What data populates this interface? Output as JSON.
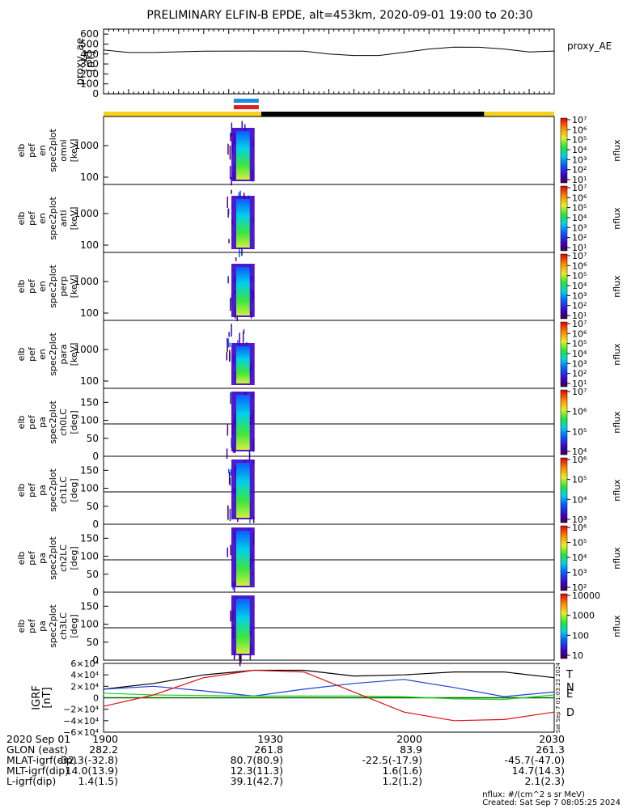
{
  "title": "PRELIMINARY ELFIN-B EPDE, alt=453km, 2020-09-01 19:00 to 20:30",
  "proxy_ae": {
    "ylabel": "proxy_ae\n[nT]",
    "legend": "proxy_AE",
    "yticks": [
      "600",
      "500",
      "400",
      "300",
      "200",
      "100",
      "0"
    ]
  },
  "spectrogram_panels": [
    {
      "label": "elb\npef\nen\nspec2plot\nomni\n[keV]",
      "yticks": [
        "1000",
        "100"
      ],
      "cb_ticks": [
        "10⁷",
        "10⁶",
        "10⁵",
        "10⁴",
        "10³",
        "10²",
        "10¹"
      ],
      "cb_label": "nflux"
    },
    {
      "label": "elb\npef\nen\nspec2plot\nanti\n[keV]",
      "yticks": [
        "1000",
        "100"
      ],
      "cb_ticks": [
        "10⁷",
        "10⁶",
        "10⁵",
        "10⁴",
        "10³",
        "10²",
        "10¹"
      ],
      "cb_label": "nflux"
    },
    {
      "label": "elb\npef\nen\nspec2plot\nperp\n[keV]",
      "yticks": [
        "1000",
        "100"
      ],
      "cb_ticks": [
        "10⁷",
        "10⁶",
        "10⁵",
        "10⁴",
        "10³",
        "10²",
        "10¹"
      ],
      "cb_label": "nflux"
    },
    {
      "label": "elb\npef\nen\nspec2plot\npara\n[keV]",
      "yticks": [
        "1000",
        "100"
      ],
      "cb_ticks": [
        "10⁷",
        "10⁶",
        "10⁵",
        "10⁴",
        "10³",
        "10²",
        "10¹"
      ],
      "cb_label": "nflux"
    },
    {
      "label": "elb\npef\npa\nspec2plot\nch0LC\n[deg]",
      "yticks": [
        "150",
        "100",
        "50",
        "0"
      ],
      "cb_ticks": [
        "10⁷",
        "10⁶",
        "10⁵",
        "10⁴"
      ],
      "cb_label": "nflux"
    },
    {
      "label": "elb\npef\npa\nspec2plot\nch1LC\n[deg]",
      "yticks": [
        "150",
        "100",
        "50",
        "0"
      ],
      "cb_ticks": [
        "10⁶",
        "10⁵",
        "10⁴",
        "10³"
      ],
      "cb_label": "nflux"
    },
    {
      "label": "elb\npef\npa\nspec2plot\nch2LC\n[deg]",
      "yticks": [
        "150",
        "100",
        "50",
        "0"
      ],
      "cb_ticks": [
        "10⁶",
        "10⁵",
        "10⁴",
        "10³",
        "10²"
      ],
      "cb_label": "nflux"
    },
    {
      "label": "elb\npef\npa\nspec2plot\nch3LC\n[deg]",
      "yticks": [
        "150",
        "100",
        "50",
        "0"
      ],
      "cb_ticks": [
        "10000",
        "1000",
        "100",
        "10"
      ],
      "cb_label": "nflux"
    }
  ],
  "igrf": {
    "ylabel": "IGRF\n[nT]",
    "yticks": [
      "6×10⁴",
      "4×10⁴",
      "2×10⁴",
      "0",
      "−2×10⁴",
      "−4×10⁴",
      "−6×10⁴"
    ],
    "legend": [
      "T",
      "N",
      "E",
      "D"
    ],
    "side_text": "Sat Sep  7 01:03:23 2024"
  },
  "chart_data": [
    {
      "type": "line",
      "title": "PRELIMINARY ELFIN-B EPDE, alt=453km, 2020-09-01 19:00 to 20:30",
      "ylabel": "proxy_ae [nT]",
      "ylim": [
        0,
        650
      ],
      "x_minutes": [
        0,
        5,
        10,
        20,
        30,
        40,
        45,
        50,
        55,
        60,
        65,
        70,
        75,
        80,
        85,
        90
      ],
      "series": [
        {
          "name": "proxy_AE",
          "values": [
            440,
            415,
            415,
            428,
            430,
            428,
            400,
            385,
            385,
            418,
            450,
            470,
            468,
            450,
            420,
            430
          ]
        }
      ]
    },
    {
      "type": "heatmap",
      "ylabel": "IGRF [nT]",
      "ylim": [
        -60000,
        60000
      ],
      "x_minutes": [
        0,
        10,
        20,
        30,
        40,
        50,
        60,
        70,
        80,
        90
      ],
      "series": [
        {
          "name": "T",
          "values": [
            15000,
            25000,
            40000,
            48000,
            48000,
            38000,
            40000,
            45000,
            45000,
            35000
          ]
        },
        {
          "name": "N",
          "values": [
            15000,
            20000,
            12000,
            3000,
            15000,
            25000,
            32000,
            18000,
            2000,
            10000
          ]
        },
        {
          "name": "E",
          "values": [
            8000,
            5000,
            4000,
            3000,
            3000,
            3000,
            2000,
            -2000,
            -3000,
            5000
          ]
        },
        {
          "name": "D",
          "values": [
            -15000,
            5000,
            35000,
            48000,
            45000,
            10000,
            -25000,
            -40000,
            -38000,
            -25000
          ]
        }
      ]
    }
  ],
  "footer": {
    "rows": [
      {
        "label": "2020 Sep 01",
        "vals": [
          "1900",
          "1930",
          "2000",
          "2030"
        ]
      },
      {
        "label": "GLON (east)",
        "vals": [
          "282.2",
          "261.8",
          "83.9",
          "261.3"
        ]
      },
      {
        "label": "MLAT-igrf(dip)",
        "vals": [
          "-32.3(-32.8)",
          "80.7(80.9)",
          "-22.5(-17.9)",
          "-45.7(-47.0)"
        ]
      },
      {
        "label": "MLT-igrf(dip)",
        "vals": [
          "14.0(13.9)",
          "12.3(11.3)",
          "1.6(1.6)",
          "14.7(14.3)"
        ]
      },
      {
        "label": "L-igrf(dip)",
        "vals": [
          "1.4(1.5)",
          "39.1(42.7)",
          "1.2(1.2)",
          "2.1(2.3)"
        ]
      }
    ],
    "units_note": "nflux: #/(cm^2 s sr MeV)",
    "created": "Created: Sat Sep  7 08:05:25 2024"
  },
  "colors": {
    "yellow_bar": "#f5d21e",
    "black_bar": "#000000",
    "blue_flag": "#1e8ce6",
    "red_flag": "#e0201a",
    "T": "#000000",
    "N": "#1f3fd8",
    "E": "#1fd21f",
    "D": "#e01010"
  }
}
